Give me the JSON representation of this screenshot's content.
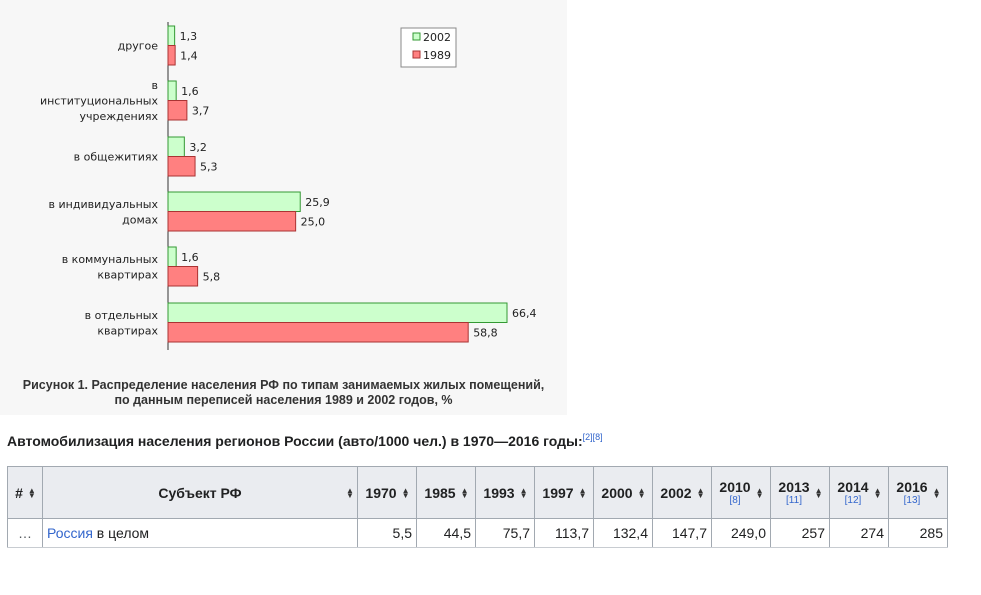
{
  "figure": {
    "caption_line1": "Рисунок 1. Распределение населения РФ по типам занимаемых жилых помещений,",
    "caption_line2": "по данным переписей населения 1989 и 2002 годов, %"
  },
  "chart_data": {
    "type": "bar",
    "orientation": "horizontal",
    "categories": [
      [
        "другое"
      ],
      [
        "в",
        "институциональных",
        "учреждениях"
      ],
      [
        "в общежитиях"
      ],
      [
        "в индивидуальных",
        "домах"
      ],
      [
        "в коммунальных",
        "квартирах"
      ],
      [
        "в отдельных",
        "квартирах"
      ]
    ],
    "series": [
      {
        "name": "2002",
        "color": "#ccffcc",
        "stroke": "#339933",
        "values": [
          1.3,
          1.6,
          3.2,
          25.9,
          1.6,
          66.4
        ],
        "labels": [
          "1,3",
          "1,6",
          "3,2",
          "25,9",
          "1,6",
          "66,4"
        ]
      },
      {
        "name": "1989",
        "color": "#ff8080",
        "stroke": "#aa3333",
        "values": [
          1.4,
          3.7,
          5.3,
          25.0,
          5.8,
          58.8
        ],
        "labels": [
          "1,4",
          "3,7",
          "5,3",
          "25,0",
          "5,8",
          "58,8"
        ]
      }
    ],
    "legend_position": "top-right",
    "xlim": [
      0,
      66.4
    ],
    "grid": false
  },
  "section": {
    "heading": "Автомобилизация населения регионов России (авто/1000 чел.) в 1970—2016 годы:",
    "refs": "[2][8]"
  },
  "table": {
    "headers": {
      "num": "#",
      "subject": "Субъект РФ",
      "years": [
        {
          "year": "1970",
          "ref": ""
        },
        {
          "year": "1985",
          "ref": ""
        },
        {
          "year": "1993",
          "ref": ""
        },
        {
          "year": "1997",
          "ref": ""
        },
        {
          "year": "2000",
          "ref": ""
        },
        {
          "year": "2002",
          "ref": ""
        },
        {
          "year": "2010",
          "ref": "[8]"
        },
        {
          "year": "2013",
          "ref": "[11]"
        },
        {
          "year": "2014",
          "ref": "[12]"
        },
        {
          "year": "2016",
          "ref": "[13]"
        }
      ]
    },
    "rows": [
      {
        "num": "…",
        "subject_link": "Россия",
        "subject_rest": " в целом",
        "values": [
          "5,5",
          "44,5",
          "75,7",
          "113,7",
          "132,4",
          "147,7",
          "249,0",
          "257",
          "274",
          "285"
        ]
      }
    ]
  }
}
